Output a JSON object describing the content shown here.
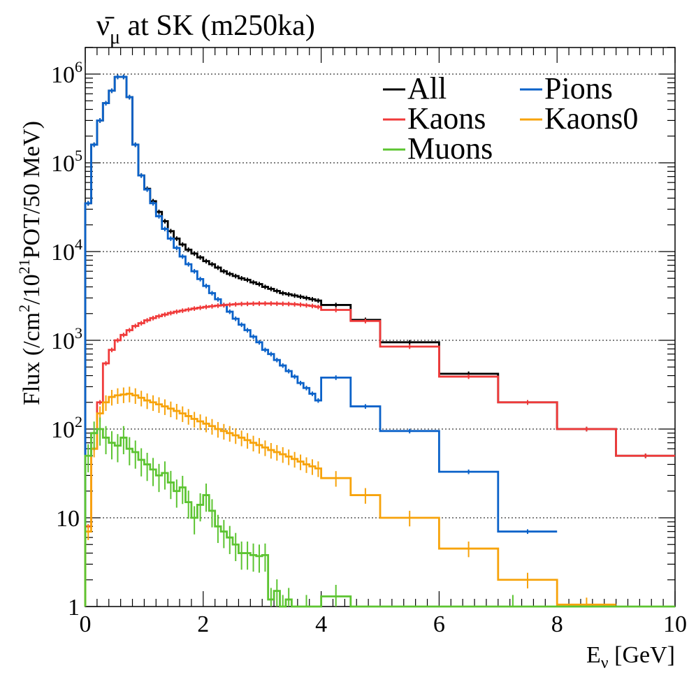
{
  "chart_data": {
    "type": "line",
    "title_main": "ν̄",
    "title_sub": "μ",
    "title_rest": " at SK (m250ka)",
    "xlabel_main": "E",
    "xlabel_sub": "ν",
    "xlabel_rest": " [GeV]",
    "ylabel_pre": "Flux (/cm",
    "ylabel_sup1": "2",
    "ylabel_mid": "/10",
    "ylabel_sup2": "21",
    "ylabel_post": "POT/50 MeV)",
    "xlim": [
      0,
      10
    ],
    "ylim": [
      1,
      2000000
    ],
    "yscale": "log",
    "grid": "horizontal dotted at decades",
    "x_ticks": [
      "0",
      "2",
      "4",
      "6",
      "8",
      "10"
    ],
    "y_ticks": [
      {
        "base": "1",
        "exp": ""
      },
      {
        "base": "10",
        "exp": ""
      },
      {
        "base": "10",
        "exp": "2"
      },
      {
        "base": "10",
        "exp": "3"
      },
      {
        "base": "10",
        "exp": "4"
      },
      {
        "base": "10",
        "exp": "5"
      },
      {
        "base": "10",
        "exp": "6"
      }
    ],
    "legend_position": "top-right",
    "series": [
      {
        "name": "All",
        "color": "#000000",
        "edges": [
          0,
          0.1,
          0.2,
          0.3,
          0.4,
          0.5,
          0.6,
          0.7,
          0.8,
          0.9,
          1.0,
          1.1,
          1.2,
          1.3,
          1.4,
          1.5,
          1.6,
          1.7,
          1.8,
          1.9,
          2.0,
          2.1,
          2.2,
          2.3,
          2.4,
          2.5,
          2.6,
          2.7,
          2.8,
          2.9,
          3.0,
          3.1,
          3.2,
          3.3,
          3.4,
          3.5,
          3.6,
          3.7,
          3.8,
          3.9,
          4.0,
          4.5,
          5,
          6,
          7,
          8,
          9,
          10
        ],
        "values": [
          35000,
          160000,
          300000,
          470000,
          650000,
          930000,
          930000,
          550000,
          160000,
          72000,
          51000,
          37000,
          28000,
          22000,
          17000,
          14000,
          12000,
          10500,
          9500,
          8600,
          7800,
          7200,
          6600,
          6000,
          5600,
          5300,
          5000,
          4800,
          4500,
          4300,
          4000,
          3800,
          3600,
          3400,
          3300,
          3200,
          3100,
          3000,
          2900,
          2800,
          2500,
          1700,
          950,
          420,
          200,
          100,
          50
        ]
      },
      {
        "name": "Pions",
        "color": "#0b62c9",
        "edges": [
          0,
          0.1,
          0.2,
          0.3,
          0.4,
          0.5,
          0.6,
          0.7,
          0.8,
          0.9,
          1.0,
          1.1,
          1.2,
          1.3,
          1.4,
          1.5,
          1.6,
          1.7,
          1.8,
          1.9,
          2.0,
          2.1,
          2.2,
          2.3,
          2.4,
          2.5,
          2.6,
          2.7,
          2.8,
          2.9,
          3.0,
          3.1,
          3.2,
          3.3,
          3.4,
          3.5,
          3.6,
          3.7,
          3.8,
          3.9,
          4.0,
          4.5,
          5,
          6,
          7,
          8
        ],
        "values": [
          35000,
          160000,
          300000,
          470000,
          650000,
          930000,
          930000,
          550000,
          160000,
          72000,
          50000,
          35000,
          25000,
          18000,
          14000,
          11000,
          8800,
          7200,
          6000,
          4900,
          4100,
          3400,
          2900,
          2500,
          2100,
          1750,
          1500,
          1300,
          1100,
          950,
          780,
          700,
          600,
          520,
          450,
          390,
          330,
          290,
          250,
          210,
          380,
          180,
          95,
          33,
          7
        ]
      },
      {
        "name": "Kaons",
        "color": "#f03a3a",
        "edges": [
          0,
          0.1,
          0.2,
          0.3,
          0.4,
          0.5,
          0.6,
          0.7,
          0.8,
          0.9,
          1.0,
          1.1,
          1.2,
          1.3,
          1.4,
          1.5,
          1.6,
          1.7,
          1.8,
          1.9,
          2.0,
          2.1,
          2.2,
          2.3,
          2.4,
          2.5,
          2.6,
          2.7,
          2.8,
          2.9,
          3.0,
          3.1,
          3.2,
          3.3,
          3.4,
          3.5,
          3.6,
          3.7,
          3.8,
          3.9,
          4.0,
          4.5,
          5,
          6,
          7,
          8,
          9,
          10
        ],
        "values": [
          8,
          60,
          200,
          550,
          780,
          1000,
          1150,
          1300,
          1450,
          1560,
          1680,
          1780,
          1870,
          1950,
          2030,
          2100,
          2160,
          2220,
          2280,
          2330,
          2380,
          2420,
          2460,
          2490,
          2520,
          2550,
          2570,
          2580,
          2590,
          2600,
          2600,
          2600,
          2590,
          2580,
          2570,
          2550,
          2520,
          2480,
          2440,
          2380,
          2200,
          1650,
          850,
          390,
          200,
          100,
          50
        ]
      },
      {
        "name": "Kaons0",
        "color": "#f7a30b",
        "edges": [
          0,
          0.1,
          0.2,
          0.3,
          0.4,
          0.5,
          0.6,
          0.7,
          0.8,
          0.9,
          1.0,
          1.1,
          1.2,
          1.3,
          1.4,
          1.5,
          1.6,
          1.7,
          1.8,
          1.9,
          2.0,
          2.1,
          2.2,
          2.3,
          2.4,
          2.5,
          2.6,
          2.7,
          2.8,
          2.9,
          3.0,
          3.1,
          3.2,
          3.3,
          3.4,
          3.5,
          3.6,
          3.7,
          3.8,
          3.9,
          4.0,
          4.5,
          5,
          6,
          7,
          8,
          9
        ],
        "values": [
          7,
          60,
          150,
          200,
          230,
          240,
          245,
          250,
          240,
          225,
          210,
          200,
          190,
          180,
          170,
          160,
          150,
          140,
          130,
          122,
          115,
          108,
          100,
          95,
          90,
          85,
          80,
          75,
          70,
          66,
          62,
          58,
          55,
          52,
          49,
          46,
          43,
          40,
          38,
          36,
          28,
          18,
          10,
          4.5,
          2,
          1.05
        ]
      },
      {
        "name": "Muons",
        "color": "#5cc431",
        "edges": [
          0,
          0.1,
          0.2,
          0.3,
          0.4,
          0.5,
          0.6,
          0.7,
          0.8,
          0.9,
          1.0,
          1.1,
          1.2,
          1.3,
          1.4,
          1.5,
          1.6,
          1.7,
          1.8,
          1.9,
          2.0,
          2.1,
          2.2,
          2.3,
          2.4,
          2.5,
          2.6,
          2.7,
          2.8,
          2.9,
          3.0,
          3.1,
          3.2,
          3.3,
          3.4,
          3.5,
          4.0,
          4.5,
          10
        ],
        "values": [
          50,
          90,
          100,
          80,
          70,
          65,
          80,
          60,
          55,
          45,
          40,
          35,
          30,
          32,
          25,
          20,
          22,
          15,
          10,
          14,
          18,
          12,
          8,
          7,
          6,
          5,
          4,
          4,
          3.8,
          3.7,
          3.8,
          1.2,
          1.5,
          1.0,
          1.2,
          1.0,
          1.3,
          1.0
        ]
      }
    ]
  }
}
